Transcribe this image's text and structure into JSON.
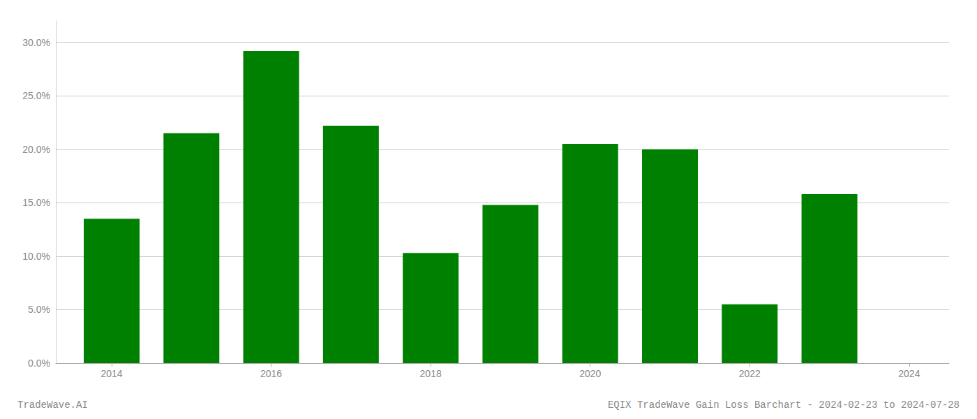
{
  "chart_data": {
    "type": "bar",
    "title": "EQIX TradeWave Gain Loss Barchart - 2024-02-23 to 2024-07-28",
    "annotations": [
      "TradeWave.AI"
    ],
    "x": [
      2014,
      2015,
      2016,
      2017,
      2018,
      2019,
      2020,
      2021,
      2022,
      2023
    ],
    "values": [
      0.135,
      0.215,
      0.292,
      0.222,
      0.103,
      0.148,
      0.205,
      0.2,
      0.055,
      0.158
    ],
    "color": "#008000",
    "xlim": [
      2013.3,
      2024.5
    ],
    "xticks": [
      2014,
      2016,
      2018,
      2020,
      2022,
      2024
    ],
    "ylim": [
      0,
      0.32
    ],
    "yticks": [
      {
        "value": 0.0,
        "label": "0.0%"
      },
      {
        "value": 0.05,
        "label": "5.0%"
      },
      {
        "value": 0.1,
        "label": "10.0%"
      },
      {
        "value": 0.15,
        "label": "15.0%"
      },
      {
        "value": 0.2,
        "label": "20.0%"
      },
      {
        "value": 0.25,
        "label": "25.0%"
      },
      {
        "value": 0.3,
        "label": "30.0%"
      }
    ],
    "grid": true
  }
}
